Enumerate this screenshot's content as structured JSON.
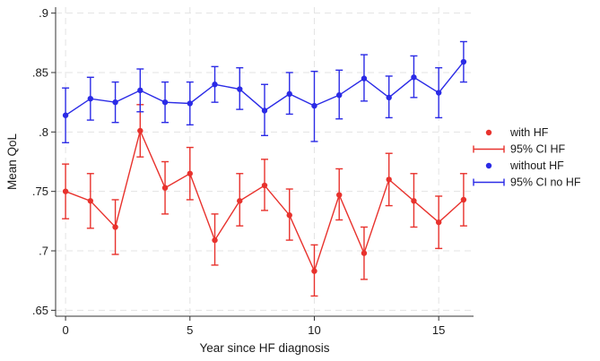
{
  "chart_data": {
    "type": "line",
    "title": "",
    "xlabel": "Year since HF diagnosis",
    "ylabel": "Mean QoL",
    "xlim": [
      -0.4,
      16.4
    ],
    "ylim": [
      0.645,
      0.905
    ],
    "x_ticks": [
      0,
      5,
      10,
      15
    ],
    "x_tick_labels": [
      "0",
      "5",
      "10",
      "15"
    ],
    "y_ticks": [
      0.65,
      0.7,
      0.75,
      0.8,
      0.85,
      0.9
    ],
    "y_tick_labels": [
      ".65",
      ".7",
      ".75",
      ".8",
      ".85",
      ".9"
    ],
    "grid": true,
    "legend_position": "right",
    "x": [
      0,
      1,
      2,
      3,
      4,
      5,
      6,
      7,
      8,
      9,
      10,
      11,
      12,
      13,
      14,
      15,
      16
    ],
    "series": [
      {
        "name": "with HF",
        "ci_name": "95% CI HF",
        "color": "#e8322d",
        "values": [
          0.75,
          0.742,
          0.72,
          0.801,
          0.753,
          0.765,
          0.709,
          0.742,
          0.755,
          0.73,
          0.683,
          0.747,
          0.698,
          0.76,
          0.742,
          0.724,
          0.743
        ],
        "lower": [
          0.727,
          0.719,
          0.697,
          0.779,
          0.731,
          0.743,
          0.688,
          0.721,
          0.734,
          0.709,
          0.662,
          0.726,
          0.676,
          0.738,
          0.72,
          0.702,
          0.721
        ],
        "upper": [
          0.773,
          0.765,
          0.743,
          0.823,
          0.775,
          0.787,
          0.731,
          0.765,
          0.777,
          0.752,
          0.705,
          0.769,
          0.72,
          0.782,
          0.765,
          0.746,
          0.765
        ]
      },
      {
        "name": "without HF",
        "ci_name": "95% CI no HF",
        "color": "#2b2be6",
        "values": [
          0.814,
          0.828,
          0.825,
          0.835,
          0.825,
          0.824,
          0.84,
          0.836,
          0.818,
          0.832,
          0.822,
          0.831,
          0.845,
          0.829,
          0.846,
          0.833,
          0.859
        ],
        "lower": [
          0.791,
          0.81,
          0.808,
          0.817,
          0.808,
          0.806,
          0.825,
          0.819,
          0.797,
          0.815,
          0.792,
          0.811,
          0.826,
          0.812,
          0.829,
          0.812,
          0.842
        ],
        "upper": [
          0.837,
          0.846,
          0.842,
          0.853,
          0.842,
          0.842,
          0.855,
          0.854,
          0.84,
          0.85,
          0.851,
          0.852,
          0.865,
          0.847,
          0.864,
          0.854,
          0.876
        ]
      }
    ],
    "legend": [
      {
        "label": "with HF",
        "kind": "marker",
        "color": "#e8322d"
      },
      {
        "label": "95% CI HF",
        "kind": "ci",
        "color": "#e8322d"
      },
      {
        "label": "without HF",
        "kind": "marker",
        "color": "#2b2be6"
      },
      {
        "label": "95% CI no HF",
        "kind": "ci",
        "color": "#2b2be6"
      }
    ]
  }
}
